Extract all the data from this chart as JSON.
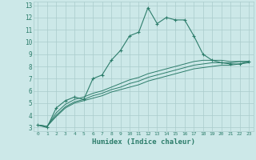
{
  "xlabel": "Humidex (Indice chaleur)",
  "background_color": "#cce8e8",
  "grid_color": "#aacccc",
  "line_color": "#2d7d6b",
  "xlim": [
    -0.5,
    23.5
  ],
  "ylim": [
    2.7,
    13.3
  ],
  "xticks": [
    0,
    1,
    2,
    3,
    4,
    5,
    6,
    7,
    8,
    9,
    10,
    11,
    12,
    13,
    14,
    15,
    16,
    17,
    18,
    19,
    20,
    21,
    22,
    23
  ],
  "yticks": [
    3,
    4,
    5,
    6,
    7,
    8,
    9,
    10,
    11,
    12,
    13
  ],
  "series1_x": [
    0,
    1,
    2,
    3,
    4,
    5,
    6,
    7,
    8,
    9,
    10,
    11,
    12,
    13,
    14,
    15,
    16,
    17,
    18,
    19,
    20,
    21,
    22,
    23
  ],
  "series1_y": [
    3.2,
    3.0,
    4.6,
    5.2,
    5.5,
    5.3,
    7.0,
    7.3,
    8.5,
    9.3,
    10.5,
    10.8,
    12.8,
    11.5,
    12.0,
    11.8,
    11.8,
    10.5,
    9.0,
    8.5,
    8.3,
    8.2,
    8.2,
    8.4
  ],
  "series2_x": [
    0,
    1,
    2,
    3,
    4,
    5,
    6,
    7,
    8,
    9,
    10,
    11,
    12,
    13,
    14,
    15,
    16,
    17,
    18,
    19,
    20,
    21,
    22,
    23
  ],
  "series2_y": [
    3.2,
    3.1,
    3.9,
    4.6,
    5.0,
    5.2,
    5.4,
    5.6,
    5.9,
    6.1,
    6.3,
    6.5,
    6.8,
    7.0,
    7.2,
    7.4,
    7.6,
    7.8,
    7.9,
    8.0,
    8.1,
    8.1,
    8.2,
    8.3
  ],
  "series3_x": [
    0,
    1,
    2,
    3,
    4,
    5,
    6,
    7,
    8,
    9,
    10,
    11,
    12,
    13,
    14,
    15,
    16,
    17,
    18,
    19,
    20,
    21,
    22,
    23
  ],
  "series3_y": [
    3.2,
    3.1,
    4.0,
    4.7,
    5.1,
    5.3,
    5.6,
    5.8,
    6.1,
    6.3,
    6.6,
    6.8,
    7.1,
    7.3,
    7.5,
    7.7,
    7.9,
    8.1,
    8.2,
    8.3,
    8.3,
    8.3,
    8.4,
    8.4
  ],
  "series4_x": [
    0,
    1,
    2,
    3,
    4,
    5,
    6,
    7,
    8,
    9,
    10,
    11,
    12,
    13,
    14,
    15,
    16,
    17,
    18,
    19,
    20,
    21,
    22,
    23
  ],
  "series4_y": [
    3.2,
    3.1,
    4.2,
    4.9,
    5.3,
    5.5,
    5.8,
    6.0,
    6.3,
    6.6,
    6.9,
    7.1,
    7.4,
    7.6,
    7.8,
    8.0,
    8.2,
    8.4,
    8.5,
    8.5,
    8.5,
    8.4,
    8.4,
    8.4
  ]
}
